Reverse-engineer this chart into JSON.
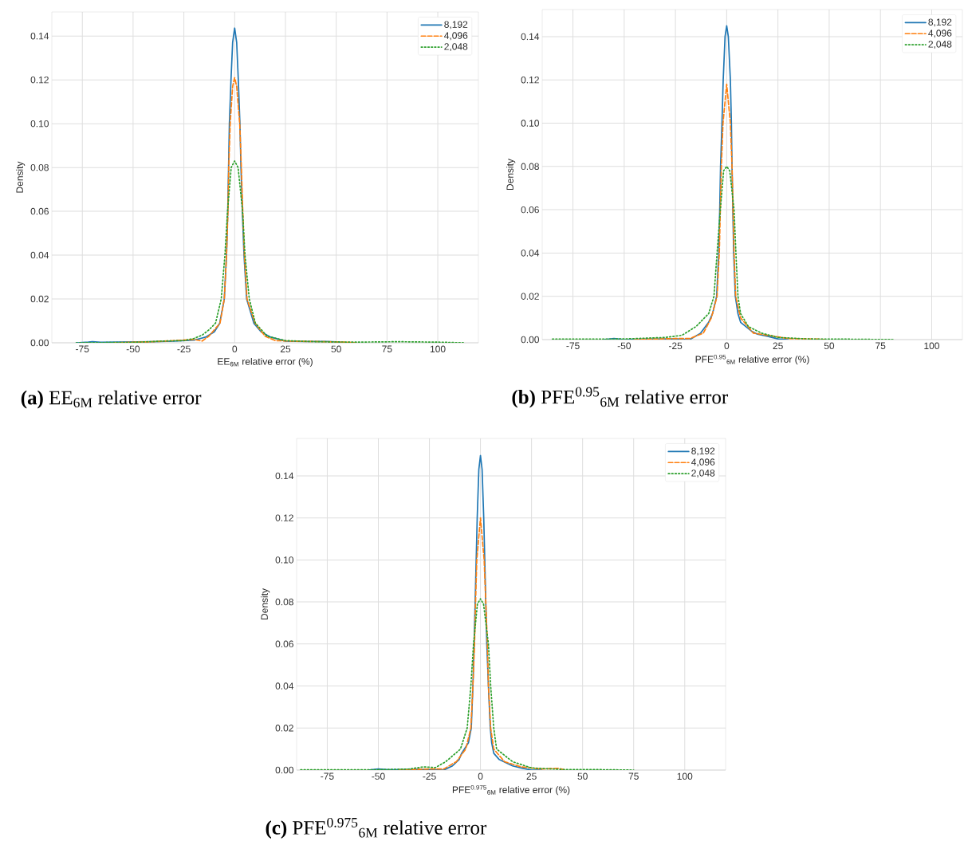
{
  "chart_data": [
    {
      "type": "line",
      "title": "**(a)** EE$_{6M}$ relative error",
      "xlabel": "EE$_{6M}$ relative error (%)",
      "ylabel": "Density",
      "xlim": [
        -90,
        120
      ],
      "ylim": [
        0,
        0.151
      ],
      "xticks": [
        -75,
        -50,
        -25,
        0,
        25,
        50,
        75,
        100
      ],
      "yticks": [
        {
          "value": 0,
          "label": "0.00"
        },
        {
          "value": 0.02,
          "label": "0.02"
        },
        {
          "value": 0.04,
          "label": "0.04"
        },
        {
          "value": 0.06,
          "label": "0.06"
        },
        {
          "value": 0.08,
          "label": "0.08"
        },
        {
          "value": 0.1,
          "label": "0.10"
        },
        {
          "value": 0.12,
          "label": "0.12"
        },
        {
          "value": 0.14,
          "label": "0.14"
        }
      ],
      "grid": true,
      "legend": "top right",
      "series": [
        {
          "name": "8,192",
          "color": "#1f77b4",
          "line_style": "solid",
          "x": [
            -78,
            -72,
            -70,
            -66,
            -40,
            -30,
            -20,
            -14,
            -10,
            -7.4,
            -5.1,
            -4.0,
            -3.4,
            -3.0,
            -2.6,
            -1.8,
            -1,
            0,
            1,
            1.8,
            2.6,
            3.1,
            3.8,
            4.6,
            5.9,
            9.5,
            13,
            17.4,
            25,
            35,
            45,
            50,
            55
          ],
          "values": [
            0,
            0.0003,
            0.0005,
            0.0002,
            0.0005,
            0.0008,
            0.0012,
            0.0027,
            0.005,
            0.0088,
            0.02,
            0.04,
            0.06,
            0.08,
            0.1,
            0.12,
            0.137,
            0.1437,
            0.137,
            0.12,
            0.1,
            0.08,
            0.06,
            0.04,
            0.02,
            0.0088,
            0.005,
            0.0027,
            0.0008,
            0.0006,
            0.0006,
            0.0004,
            0
          ]
        },
        {
          "name": "4,096",
          "color": "#ff7f0e",
          "line_style": "dashed",
          "x": [
            -60,
            -40,
            -30,
            -20,
            -16,
            -12.7,
            -7.2,
            -5.1,
            -4.0,
            -3.3,
            -2.9,
            -2.2,
            -1,
            0,
            1,
            2.5,
            3.3,
            4.0,
            4.8,
            6.1,
            10,
            15,
            20,
            30,
            45,
            55,
            60
          ],
          "values": [
            0,
            0.0005,
            0.001,
            0.0015,
            0.0008,
            0.003,
            0.009,
            0.02,
            0.04,
            0.06,
            0.08,
            0.1,
            0.117,
            0.121,
            0.117,
            0.1,
            0.08,
            0.06,
            0.04,
            0.02,
            0.009,
            0.003,
            0.001,
            0.0007,
            0.0005,
            0.0003,
            0
          ]
        },
        {
          "name": "2,048",
          "color": "#2ca02c",
          "line_style": "dotted",
          "x": [
            -78,
            -50,
            -35,
            -25,
            -20,
            -16,
            -12.5,
            -9.4,
            -6.6,
            -4.8,
            -3.5,
            -1.7,
            0,
            1.7,
            3.9,
            5.1,
            7.2,
            10.2,
            16,
            25,
            40,
            60,
            80,
            100,
            113
          ],
          "values": [
            0,
            0.0002,
            0.0008,
            0.001,
            0.002,
            0.0035,
            0.006,
            0.009,
            0.02,
            0.04,
            0.06,
            0.08,
            0.083,
            0.08,
            0.06,
            0.04,
            0.02,
            0.009,
            0.003,
            0.001,
            0.0005,
            0.0003,
            0.0005,
            0.0003,
            0
          ]
        }
      ]
    },
    {
      "type": "line",
      "title": "**(b)** PFE$^{0.95}$$_{6M}$ relative error",
      "xlabel": "PFE$^{0.95}$$_{6M}$ relative error (%)",
      "ylabel": "Density",
      "xlim": [
        -90,
        115
      ],
      "ylim": [
        0,
        0.1525
      ],
      "xticks": [
        -75,
        -50,
        -25,
        0,
        25,
        50,
        75,
        100
      ],
      "yticks": [
        {
          "value": 0,
          "label": "0.00"
        },
        {
          "value": 0.02,
          "label": "0.02"
        },
        {
          "value": 0.04,
          "label": "0.04"
        },
        {
          "value": 0.06,
          "label": "0.06"
        },
        {
          "value": 0.08,
          "label": "0.08"
        },
        {
          "value": 0.1,
          "label": "0.10"
        },
        {
          "value": 0.12,
          "label": "0.12"
        },
        {
          "value": 0.14,
          "label": "0.14"
        }
      ],
      "grid": true,
      "legend": "top right",
      "series": [
        {
          "name": "8,192",
          "color": "#1f77b4",
          "line_style": "solid",
          "x": [
            -60,
            -55,
            -50,
            -40,
            -25,
            -18,
            -12.7,
            -8.8,
            -6.9,
            -4.9,
            -3.9,
            -3.4,
            -3.0,
            -2.3,
            -1.7,
            -0.8,
            0,
            0.8,
            1.8,
            2.3,
            2.6,
            3.0,
            3.4,
            4.2,
            5.5,
            6.8,
            12,
            15,
            20,
            25,
            30
          ],
          "values": [
            0,
            0.0005,
            0,
            0.0002,
            0.0003,
            0,
            0.003,
            0.008,
            0.012,
            0.02,
            0.04,
            0.06,
            0.08,
            0.1,
            0.12,
            0.14,
            0.145,
            0.14,
            0.12,
            0.1,
            0.08,
            0.06,
            0.04,
            0.02,
            0.012,
            0.008,
            0.004,
            0.0025,
            0.0015,
            0.0003,
            0
          ]
        },
        {
          "name": "4,096",
          "color": "#ff7f0e",
          "line_style": "dashed",
          "x": [
            -45,
            -25,
            -18,
            -11.4,
            -7.5,
            -4.7,
            -3.6,
            -3.1,
            -2.6,
            -1.8,
            0,
            1.8,
            2.6,
            3.1,
            3.6,
            4.4,
            6.8,
            13,
            20,
            30,
            45,
            48
          ],
          "values": [
            0,
            0.0005,
            0.0005,
            0.003,
            0.01,
            0.02,
            0.04,
            0.06,
            0.08,
            0.1,
            0.118,
            0.1,
            0.08,
            0.06,
            0.04,
            0.02,
            0.01,
            0.003,
            0.002,
            0.0005,
            0.0002,
            0
          ]
        },
        {
          "name": "2,048",
          "color": "#2ca02c",
          "line_style": "dotted",
          "x": [
            -85,
            -50,
            -30,
            -21.8,
            -15,
            -8.8,
            -6.2,
            -4.7,
            -3.1,
            -1.5,
            0,
            1.5,
            3.6,
            4.5,
            5.5,
            6.8,
            10.6,
            17,
            25,
            40,
            60,
            82
          ],
          "values": [
            0.0002,
            0.0003,
            0.001,
            0.002,
            0.006,
            0.012,
            0.02,
            0.04,
            0.06,
            0.078,
            0.08,
            0.078,
            0.06,
            0.04,
            0.02,
            0.012,
            0.006,
            0.003,
            0.001,
            0.0003,
            0.0002,
            0
          ]
        }
      ]
    },
    {
      "type": "line",
      "title": "**(c)** PFE$^{0.975}$$_{6M}$ relative error",
      "xlabel": "PFE$^{0.975}$$_{6M}$ relative error (%)",
      "ylabel": "Density",
      "xlim": [
        -90,
        120
      ],
      "ylim": [
        0,
        0.1578
      ],
      "xticks": [
        -75,
        -50,
        -25,
        0,
        25,
        50,
        75,
        100
      ],
      "yticks": [
        {
          "value": 0,
          "label": "0.00"
        },
        {
          "value": 0.02,
          "label": "0.02"
        },
        {
          "value": 0.04,
          "label": "0.04"
        },
        {
          "value": 0.06,
          "label": "0.06"
        },
        {
          "value": 0.08,
          "label": "0.08"
        },
        {
          "value": 0.1,
          "label": "0.10"
        },
        {
          "value": 0.12,
          "label": "0.12"
        },
        {
          "value": 0.14,
          "label": "0.14"
        }
      ],
      "grid": true,
      "legend": "top right",
      "series": [
        {
          "name": "8,192",
          "color": "#1f77b4",
          "line_style": "solid",
          "x": [
            -55,
            -50,
            -45,
            -30,
            -18,
            -13.7,
            -10.5,
            -9.2,
            -5.9,
            -4.5,
            -3.7,
            -3.1,
            -2.6,
            -2.1,
            -1.6,
            -0.8,
            0,
            0.8,
            1.6,
            2.1,
            2.6,
            3.1,
            3.9,
            4.8,
            5.5,
            6.5,
            9.2,
            15.7,
            20,
            25,
            30
          ],
          "values": [
            0,
            0.0005,
            0.0002,
            0.0003,
            0,
            0.002,
            0.005,
            0.008,
            0.013,
            0.02,
            0.04,
            0.06,
            0.08,
            0.1,
            0.12,
            0.143,
            0.1497,
            0.143,
            0.12,
            0.1,
            0.08,
            0.06,
            0.04,
            0.02,
            0.013,
            0.008,
            0.005,
            0.002,
            0.001,
            0,
            0
          ]
        },
        {
          "name": "4,096",
          "color": "#ff7f0e",
          "line_style": "dashed",
          "x": [
            -40,
            -25,
            -18,
            -11.8,
            -7.2,
            -4.7,
            -3.7,
            -2.9,
            -2.4,
            -1.8,
            0,
            1.8,
            2.6,
            3.4,
            3.9,
            5.0,
            6.5,
            11.8,
            20,
            30,
            38,
            42
          ],
          "values": [
            0,
            0.0005,
            0.0005,
            0.004,
            0.01,
            0.02,
            0.04,
            0.06,
            0.08,
            0.1,
            0.12,
            0.1,
            0.08,
            0.06,
            0.04,
            0.02,
            0.01,
            0.004,
            0.0015,
            0.0005,
            0.0008,
            0
          ]
        },
        {
          "name": "2,048",
          "color": "#2ca02c",
          "line_style": "dotted",
          "x": [
            -88,
            -50,
            -35,
            -28,
            -22,
            -17,
            -9.8,
            -6.5,
            -4.7,
            -3.4,
            -1.5,
            0,
            1.5,
            3.9,
            5.0,
            6.5,
            7.9,
            15.7,
            25,
            40,
            60,
            75
          ],
          "values": [
            0.0002,
            0.0002,
            0.0005,
            0.0015,
            0.0012,
            0.004,
            0.01,
            0.02,
            0.04,
            0.06,
            0.079,
            0.0815,
            0.079,
            0.06,
            0.04,
            0.02,
            0.01,
            0.004,
            0.001,
            0.0003,
            0.0002,
            0
          ]
        }
      ]
    }
  ]
}
